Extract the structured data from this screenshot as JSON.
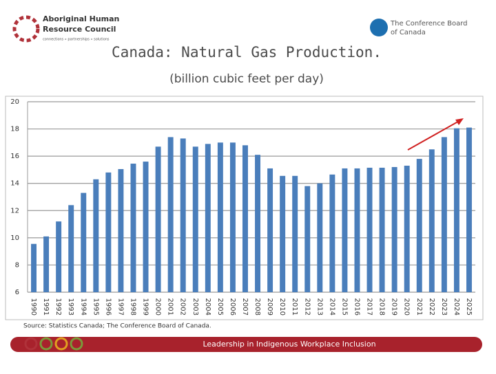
{
  "header": {
    "org_left": "Aboriginal Human",
    "org_left_2": "Resource Council",
    "org_left_tagline": "connections » partnerships » solutions",
    "org_right": "The Conference Board",
    "org_right_2": "of Canada"
  },
  "chart_data": {
    "type": "bar",
    "title": "Canada: Natural Gas Production.",
    "subtitle": "(billion cubic feet per day)",
    "categories": [
      "1990",
      "1991",
      "1992",
      "1993",
      "1994",
      "1995",
      "1996",
      "1997",
      "1998",
      "1999",
      "2000",
      "2001",
      "2002",
      "2003",
      "2004",
      "2005",
      "2006",
      "2007",
      "2008",
      "2009",
      "2010",
      "2011",
      "2012",
      "2013",
      "2014",
      "2015",
      "2016",
      "2017",
      "2018",
      "2019",
      "2020",
      "2021",
      "2022",
      "2023",
      "2024",
      "2025"
    ],
    "values": [
      9.55,
      10.1,
      11.2,
      12.4,
      13.3,
      14.3,
      14.8,
      15.05,
      15.45,
      15.6,
      16.7,
      17.4,
      17.3,
      16.7,
      16.9,
      17.0,
      17.0,
      16.8,
      16.1,
      15.1,
      14.55,
      14.55,
      13.8,
      14.0,
      14.65,
      15.1,
      15.1,
      15.15,
      15.15,
      15.2,
      15.3,
      15.8,
      16.5,
      17.4,
      18.05,
      18.1
    ],
    "color": "#4a7ebb",
    "ylim": [
      6,
      20
    ],
    "yticks": [
      6,
      8,
      10,
      12,
      14,
      16,
      18,
      20
    ],
    "grid": true,
    "source": "Source: Statistics Canada; The Conference Board of Canada."
  },
  "footer": {
    "banner": "Leadership in Indigenous Workplace Inclusion"
  }
}
